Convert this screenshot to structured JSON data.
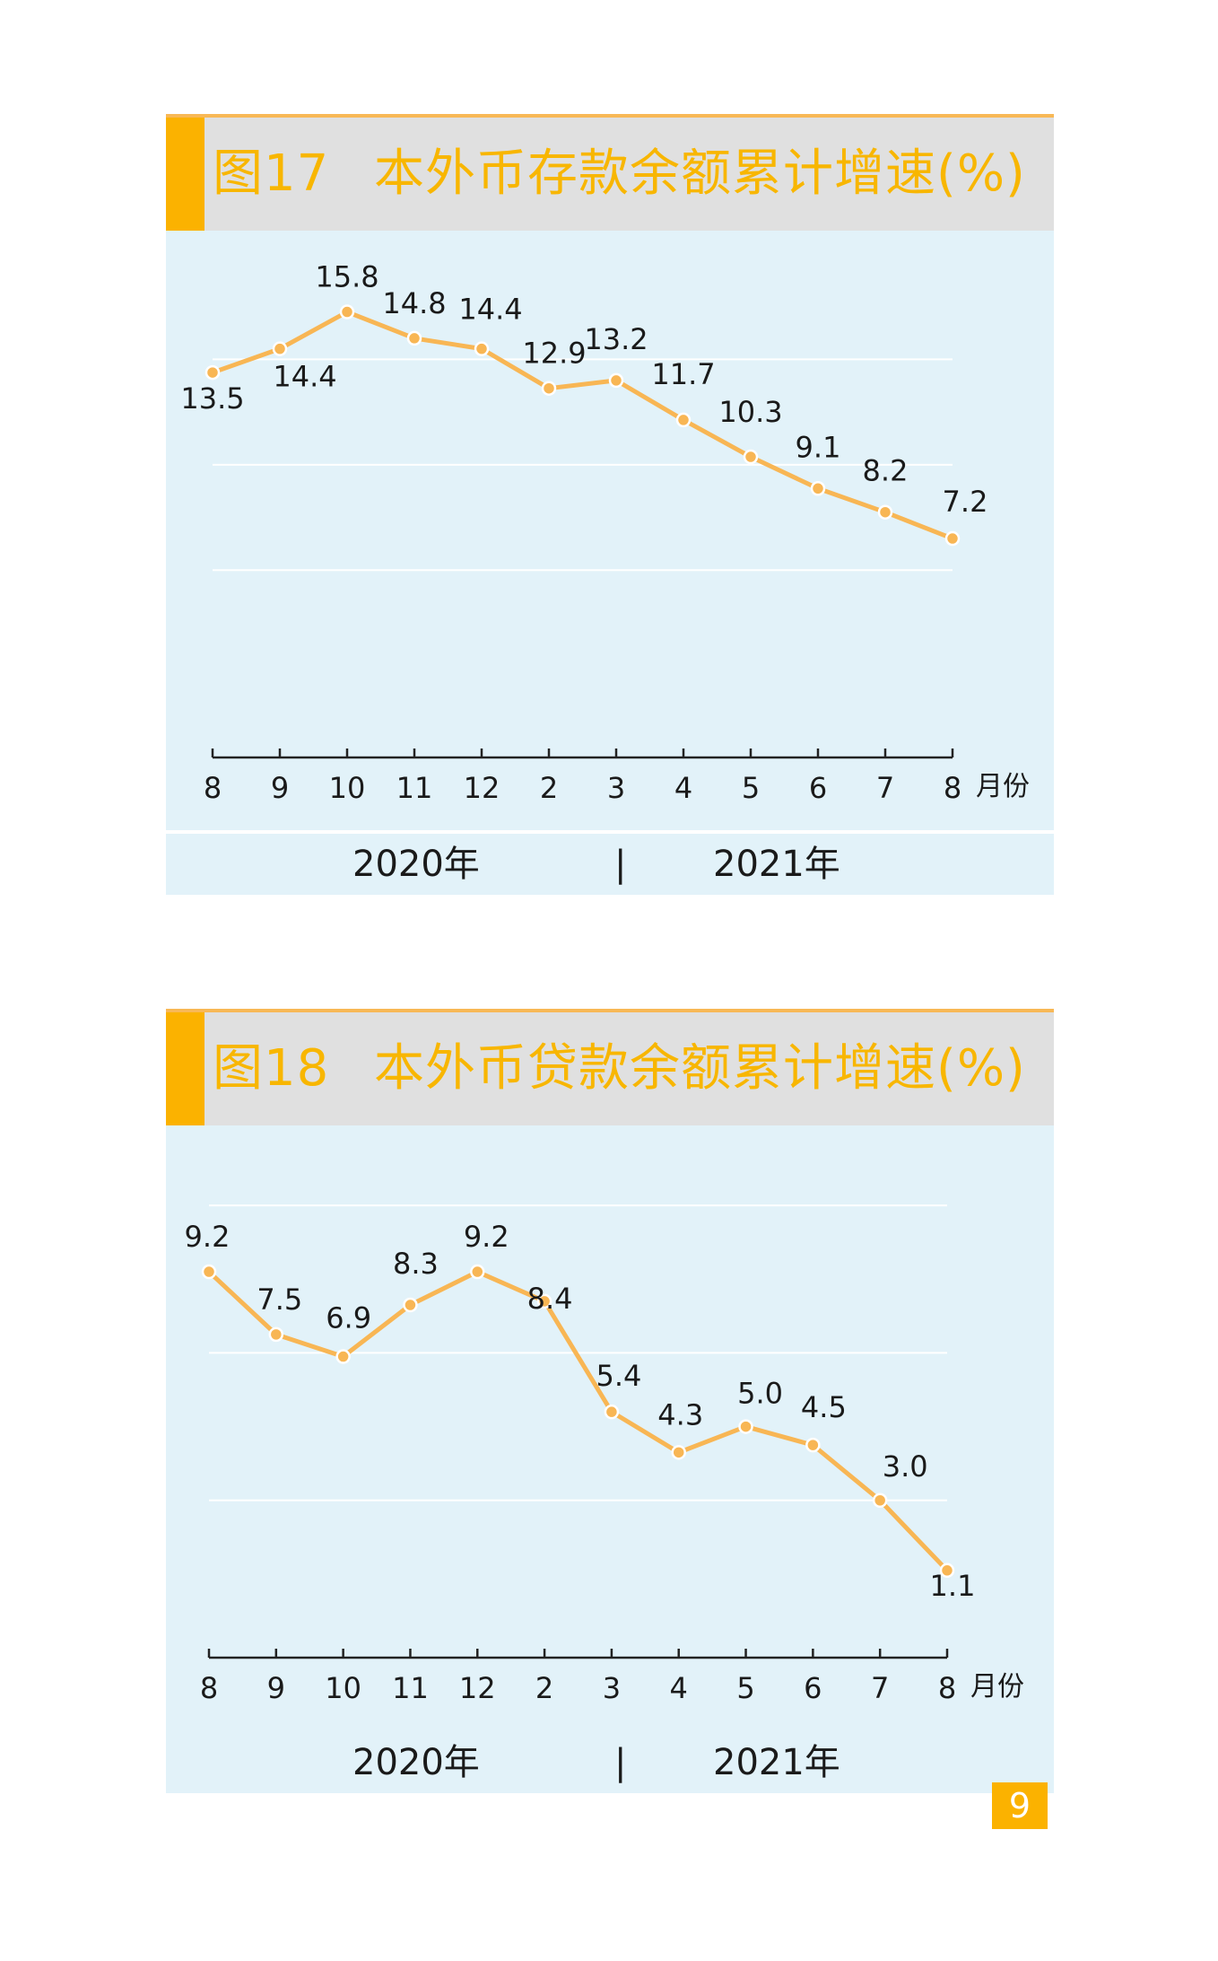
{
  "charts": [
    {
      "figure_label": "图17",
      "title": "本外币存款余额累计增速(%)",
      "year_left": "2020年",
      "year_sep": "|",
      "year_right": "2021年",
      "unit_label": "月份"
    },
    {
      "figure_label": "图18",
      "title": "本外币贷款余额累计增速(%)",
      "year_left": "2020年",
      "year_sep": "|",
      "year_right": "2021年",
      "unit_label": "月份"
    }
  ],
  "page_number": "9",
  "colors": {
    "accent": "#fbb200",
    "line": "#f8b654",
    "plot_bg": "#e2f2f9",
    "title_bg": "#e0e0e0",
    "title_text": "#f8b600"
  },
  "chart_data": [
    {
      "type": "line",
      "title": "本外币存款余额累计增速(%)",
      "categories": [
        "8",
        "9",
        "10",
        "11",
        "12",
        "2",
        "3",
        "4",
        "5",
        "6",
        "7",
        "8"
      ],
      "values": [
        13.5,
        14.4,
        15.8,
        14.8,
        14.4,
        12.9,
        13.2,
        11.7,
        10.3,
        9.1,
        8.2,
        7.2
      ],
      "xlabel": "月份",
      "ylim": [
        4.0,
        16.5
      ],
      "grid": true,
      "x_group_labels": [
        "2020年",
        "2021年"
      ]
    },
    {
      "type": "line",
      "title": "本外币贷款余额累计增速(%)",
      "categories": [
        "8",
        "9",
        "10",
        "11",
        "12",
        "2",
        "3",
        "4",
        "5",
        "6",
        "7",
        "8"
      ],
      "values": [
        9.2,
        7.5,
        6.9,
        8.3,
        9.2,
        8.4,
        5.4,
        4.3,
        5.0,
        4.5,
        3.0,
        1.1
      ],
      "xlabel": "月份",
      "ylim": [
        0.0,
        12.0
      ],
      "grid": true,
      "x_group_labels": [
        "2020年",
        "2021年"
      ]
    }
  ]
}
